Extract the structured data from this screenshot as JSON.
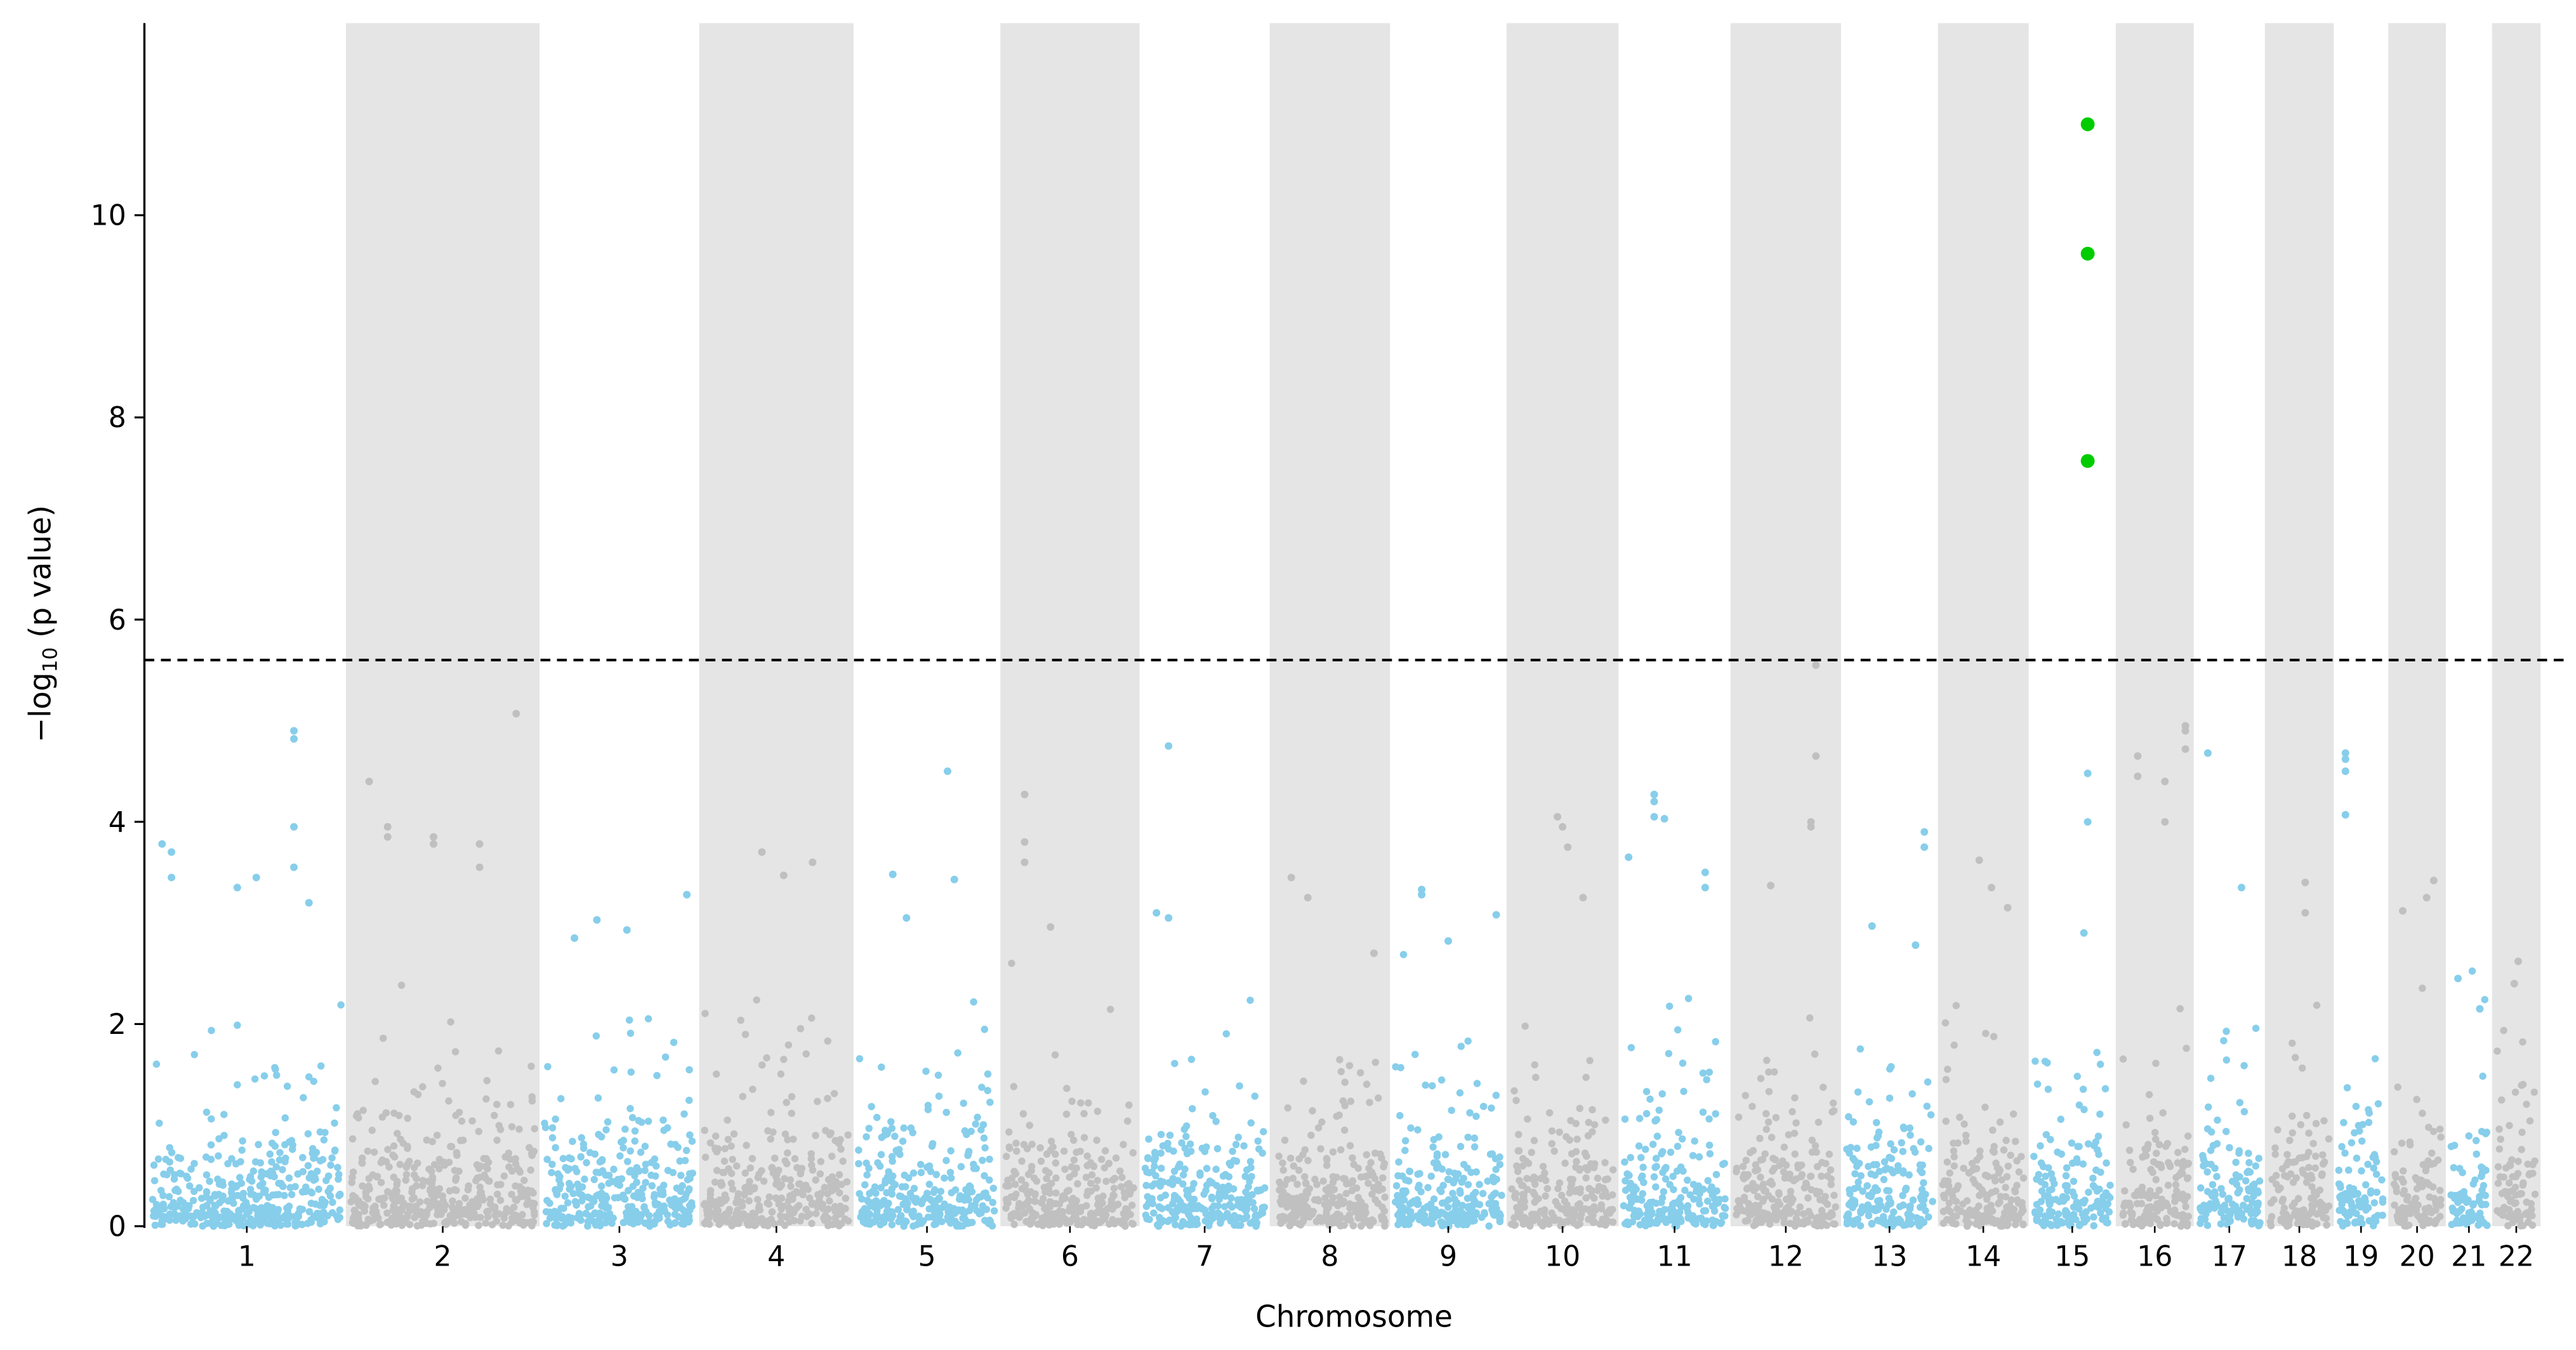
{
  "chart_data": {
    "type": "scatter",
    "subtype": "manhattan",
    "title": "",
    "xlabel": "Chromosome",
    "ylabel_prefix": "−log",
    "ylabel_sub": "10",
    "ylabel_suffix": " (p value)",
    "ylim": [
      0,
      11.9
    ],
    "yticks": [
      0,
      2,
      4,
      6,
      8,
      10
    ],
    "threshold": 5.6,
    "colors": {
      "odd": "#87ceeb",
      "even": "#c0c0c0",
      "significant": "#00cc00",
      "band": "#e5e5e5",
      "threshold": "#000000"
    },
    "chromosomes": [
      {
        "label": "1",
        "length_mb": 249,
        "peaks": [
          [
            0.05,
            3.78
          ],
          [
            0.1,
            3.7
          ],
          [
            0.1,
            3.45
          ],
          [
            0.45,
            3.35
          ],
          [
            0.55,
            3.45
          ],
          [
            0.75,
            4.9
          ],
          [
            0.75,
            4.82
          ],
          [
            0.75,
            3.95
          ],
          [
            0.75,
            3.55
          ],
          [
            0.83,
            3.2
          ]
        ]
      },
      {
        "label": "2",
        "length_mb": 243,
        "peaks": [
          [
            0.1,
            4.4
          ],
          [
            0.2,
            3.95
          ],
          [
            0.2,
            3.85
          ],
          [
            0.45,
            3.85
          ],
          [
            0.45,
            3.78
          ],
          [
            0.7,
            3.78
          ],
          [
            0.7,
            3.55
          ],
          [
            0.9,
            5.07
          ]
        ]
      },
      {
        "label": "3",
        "length_mb": 198,
        "peaks": [
          [
            0.2,
            2.85
          ],
          [
            0.35,
            3.03
          ],
          [
            0.55,
            2.93
          ],
          [
            0.95,
            3.28
          ]
        ]
      },
      {
        "label": "4",
        "length_mb": 191,
        "peaks": [
          [
            0.4,
            3.7
          ],
          [
            0.55,
            3.47
          ],
          [
            0.75,
            3.6
          ]
        ]
      },
      {
        "label": "5",
        "length_mb": 181,
        "peaks": [
          [
            0.25,
            3.48
          ],
          [
            0.35,
            3.05
          ],
          [
            0.65,
            4.5
          ],
          [
            0.7,
            3.43
          ]
        ]
      },
      {
        "label": "6",
        "length_mb": 171,
        "peaks": [
          [
            0.15,
            4.27
          ],
          [
            0.15,
            3.8
          ],
          [
            0.15,
            3.6
          ],
          [
            0.35,
            2.96
          ]
        ]
      },
      {
        "label": "7",
        "length_mb": 159,
        "peaks": [
          [
            0.1,
            3.1
          ],
          [
            0.2,
            4.75
          ],
          [
            0.2,
            3.05
          ]
        ]
      },
      {
        "label": "8",
        "length_mb": 146,
        "peaks": [
          [
            0.15,
            3.45
          ],
          [
            0.3,
            3.25
          ],
          [
            0.9,
            2.7
          ]
        ]
      },
      {
        "label": "9",
        "length_mb": 141,
        "peaks": [
          [
            0.25,
            3.33
          ],
          [
            0.25,
            3.28
          ],
          [
            0.5,
            2.82
          ],
          [
            0.95,
            3.08
          ]
        ]
      },
      {
        "label": "10",
        "length_mb": 135,
        "peaks": [
          [
            0.45,
            4.05
          ],
          [
            0.5,
            3.95
          ],
          [
            0.55,
            3.75
          ],
          [
            0.7,
            3.25
          ]
        ]
      },
      {
        "label": "11",
        "length_mb": 135,
        "peaks": [
          [
            0.05,
            3.65
          ],
          [
            0.3,
            4.27
          ],
          [
            0.3,
            4.2
          ],
          [
            0.3,
            4.05
          ],
          [
            0.4,
            4.03
          ],
          [
            0.8,
            3.5
          ],
          [
            0.8,
            3.35
          ]
        ]
      },
      {
        "label": "12",
        "length_mb": 133,
        "peaks": [
          [
            0.35,
            3.37
          ],
          [
            0.75,
            3.95
          ],
          [
            0.75,
            4.0
          ],
          [
            0.8,
            5.55
          ],
          [
            0.8,
            4.65
          ]
        ]
      },
      {
        "label": "13",
        "length_mb": 115,
        "peaks": [
          [
            0.3,
            2.97
          ],
          [
            0.8,
            2.78
          ],
          [
            0.9,
            3.9
          ],
          [
            0.9,
            3.75
          ]
        ]
      },
      {
        "label": "14",
        "length_mb": 107,
        "peaks": [
          [
            0.45,
            3.62
          ],
          [
            0.6,
            3.35
          ],
          [
            0.8,
            3.15
          ]
        ]
      },
      {
        "label": "15",
        "length_mb": 102,
        "peaks": [
          [
            0.7,
            10.9
          ],
          [
            0.7,
            9.62
          ],
          [
            0.7,
            7.57
          ],
          [
            0.7,
            4.48
          ],
          [
            0.7,
            4.0
          ],
          [
            0.65,
            2.9
          ]
        ]
      },
      {
        "label": "16",
        "length_mb": 90,
        "peaks": [
          [
            0.25,
            4.65
          ],
          [
            0.25,
            4.45
          ],
          [
            0.65,
            4.4
          ],
          [
            0.65,
            4.0
          ],
          [
            0.95,
            4.95
          ],
          [
            0.95,
            4.9
          ],
          [
            0.95,
            4.72
          ]
        ]
      },
      {
        "label": "17",
        "length_mb": 81,
        "peaks": [
          [
            0.15,
            4.68
          ],
          [
            0.7,
            3.35
          ]
        ]
      },
      {
        "label": "18",
        "length_mb": 78,
        "peaks": [
          [
            0.6,
            3.4
          ],
          [
            0.6,
            3.1
          ]
        ]
      },
      {
        "label": "19",
        "length_mb": 59,
        "peaks": [
          [
            0.15,
            4.68
          ],
          [
            0.15,
            4.62
          ],
          [
            0.15,
            4.5
          ],
          [
            0.15,
            4.07
          ]
        ]
      },
      {
        "label": "20",
        "length_mb": 63,
        "peaks": [
          [
            0.2,
            3.12
          ],
          [
            0.7,
            3.25
          ],
          [
            0.85,
            3.42
          ]
        ]
      },
      {
        "label": "21",
        "length_mb": 48,
        "peaks": [
          [
            0.2,
            2.45
          ],
          [
            0.8,
            2.15
          ]
        ]
      },
      {
        "label": "22",
        "length_mb": 51,
        "peaks": [
          [
            0.55,
            2.62
          ],
          [
            0.45,
            2.4
          ]
        ]
      }
    ]
  }
}
